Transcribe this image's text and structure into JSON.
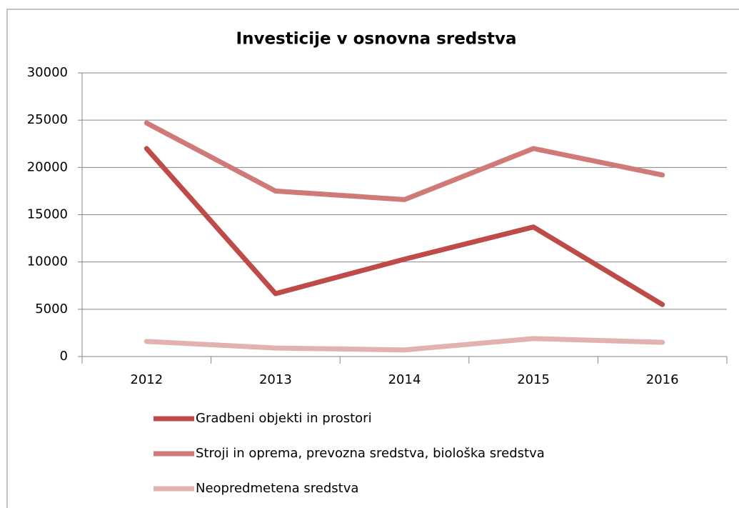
{
  "chart_data": {
    "type": "line",
    "title": "Investicije v osnovna sredstva",
    "categories": [
      "2012",
      "2013",
      "2014",
      "2015",
      "2016"
    ],
    "series": [
      {
        "name": "Gradbeni objekti in prostori",
        "color": "#be4b48",
        "values": [
          22000,
          6650,
          10300,
          13700,
          5500
        ]
      },
      {
        "name": "Stroji in oprema, prevozna sredstva, biološka sredstva",
        "color": "#d07a77",
        "values": [
          24700,
          17500,
          16600,
          22000,
          19200
        ]
      },
      {
        "name": "Neopredmetena sredstva",
        "color": "#e2b2b0",
        "values": [
          1600,
          900,
          700,
          1900,
          1500
        ]
      }
    ],
    "ylim": [
      0,
      30000
    ],
    "yticks": [
      0,
      5000,
      10000,
      15000,
      20000,
      25000,
      30000
    ],
    "grid": true,
    "legend": "bottom"
  }
}
